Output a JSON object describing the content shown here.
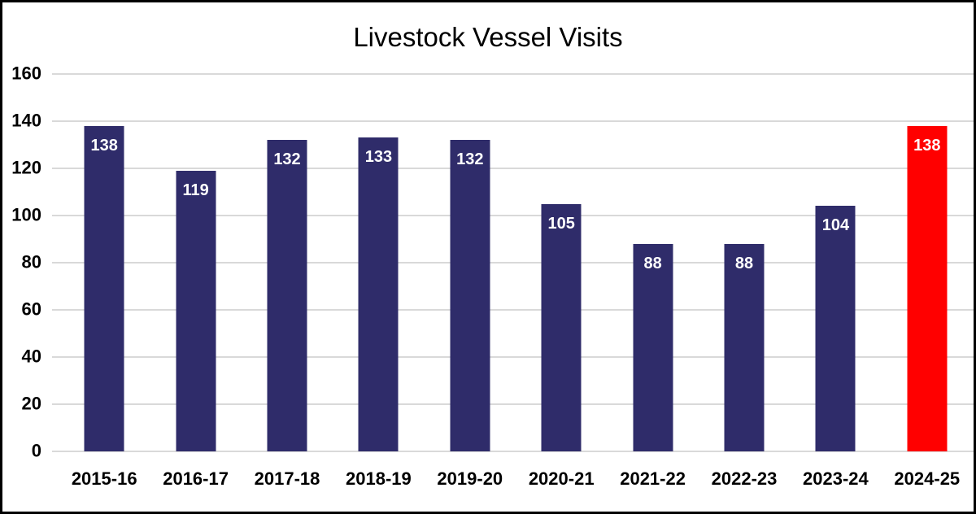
{
  "chart_data": {
    "type": "bar",
    "title": "Livestock Vessel Visits",
    "categories": [
      "2015-16",
      "2016-17",
      "2017-18",
      "2018-19",
      "2019-20",
      "2020-21",
      "2021-22",
      "2022-23",
      "2023-24",
      "2024-25"
    ],
    "values": [
      138,
      119,
      132,
      133,
      132,
      105,
      88,
      88,
      104,
      138
    ],
    "bar_colors": [
      "#2f2c6a",
      "#2f2c6a",
      "#2f2c6a",
      "#2f2c6a",
      "#2f2c6a",
      "#2f2c6a",
      "#2f2c6a",
      "#2f2c6a",
      "#2f2c6a",
      "#ff0000"
    ],
    "value_labels": [
      "138",
      "119",
      "132",
      "133",
      "132",
      "105",
      "88",
      "88",
      "104",
      "138"
    ],
    "value_label_color": "#ffffff",
    "xlabel": "",
    "ylabel": "",
    "ylim": [
      0,
      160
    ],
    "yticks": [
      0,
      20,
      40,
      60,
      80,
      100,
      120,
      140,
      160
    ],
    "grid": "horizontal",
    "legend": "none"
  },
  "colors": {
    "bar_default": "#2f2c6a",
    "bar_highlight": "#ff0000",
    "gridline": "#d9d9d9",
    "text": "#000000",
    "background": "#ffffff",
    "border": "#000000"
  }
}
